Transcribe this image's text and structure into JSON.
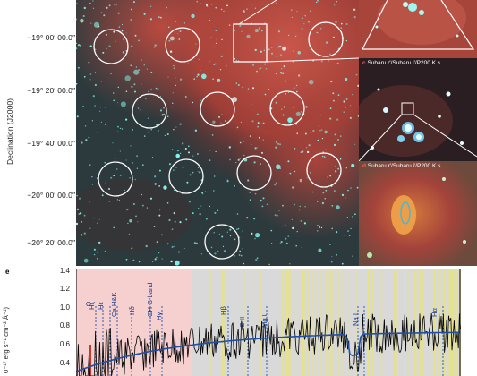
{
  "declination_axis": {
    "label": "Declination (J2000)",
    "ticks": [
      "−19° 00′ 00.0″",
      "−19° 20′ 00.0″",
      "−19° 40′ 00.0″",
      "−20° 00′ 00.0″",
      "−20° 20′ 00.0″"
    ]
  },
  "panels": {
    "c": {
      "letter": "c",
      "title": "Subaru r′/Subaru i′/P200 K s"
    },
    "d": {
      "letter": "d",
      "title": "Subaru r′/Subaru i′/P200 K s"
    },
    "e": {
      "letter": "e"
    }
  },
  "spectrum": {
    "y_label": "0⁻¹⁷ erg s⁻¹ cm⁻² Å⁻¹)",
    "y_ticks": [
      "1.4",
      "1.2",
      "1.0",
      "0.8",
      "0.6",
      "0.4"
    ],
    "line_labels": {
      "O": "O",
      "Hz": "Hζ",
      "He": "Hε",
      "CaHK": "Ca H&K",
      "Hd": "Hδ",
      "CH": "CH G-band",
      "Hg": "Hγ",
      "Hb": "Hβ",
      "OII": "O II",
      "Mg": "Mg I",
      "Na": "Na I",
      "Ha": "Hα"
    }
  },
  "colors": {
    "nebula": "#b5463c",
    "stars": "#7ff5ea",
    "spectrum_data": "#000000",
    "spectrum_model": "#1f4fa8",
    "pink_band": "#f6cfcf",
    "grey_band": "#d9d9d9",
    "telluric": "#e6e28a"
  }
}
